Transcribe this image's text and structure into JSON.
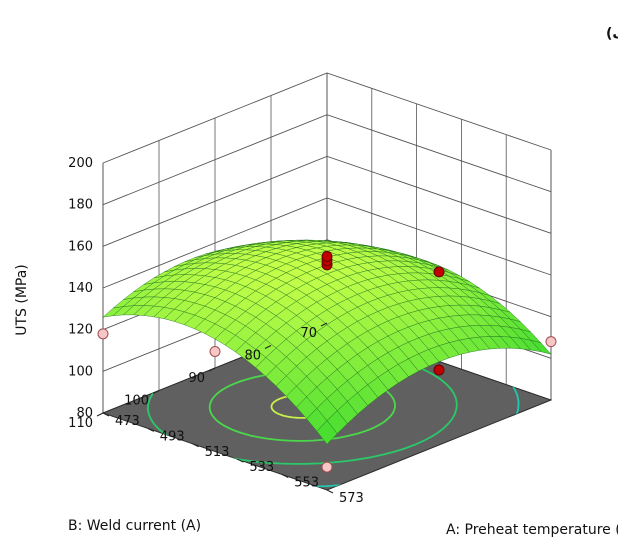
{
  "chart_data": {
    "type": "surface3d",
    "panel_label": "الف)",
    "zlabel": "UTS (MPa)",
    "xlabel": "A: Preheat temperature (K)",
    "ylabel": "B: Weld current (A)",
    "z_ticks": [
      "80",
      "100",
      "120",
      "140",
      "160",
      "180",
      "200"
    ],
    "x_ticks": [
      "473",
      "493",
      "513",
      "533",
      "553",
      "573"
    ],
    "y_ticks": [
      "70",
      "80",
      "90",
      "100",
      "110"
    ],
    "zlim": [
      80,
      200
    ],
    "xlim": [
      473,
      573
    ],
    "ylim": [
      70,
      110
    ],
    "design_points": [
      {
        "a": 473,
        "b": 70,
        "uts": 100,
        "above_surface": false
      },
      {
        "a": 573,
        "b": 70,
        "uts": 108,
        "above_surface": false
      },
      {
        "a": 473,
        "b": 110,
        "uts": 118,
        "above_surface": false
      },
      {
        "a": 573,
        "b": 110,
        "uts": 91,
        "above_surface": false
      },
      {
        "a": 523,
        "b": 70,
        "uts": 123,
        "above_surface": true
      },
      {
        "a": 523,
        "b": 110,
        "uts": 128,
        "above_surface": false
      },
      {
        "a": 473,
        "b": 90,
        "uts": 132,
        "above_surface": false
      },
      {
        "a": 573,
        "b": 90,
        "uts": 116,
        "above_surface": true
      },
      {
        "a": 523,
        "b": 90,
        "uts": 148,
        "above_surface": true
      },
      {
        "a": 523,
        "b": 90,
        "uts": 150,
        "above_surface": true
      },
      {
        "a": 523,
        "b": 90,
        "uts": 152,
        "above_surface": true
      }
    ],
    "colors": {
      "surface_low": "#2bd62b",
      "surface_high": "#c8ff4a",
      "mesh": "#1d6e1d",
      "floor": "#606060",
      "point_above": "#c00000",
      "point_below": "#f7c6c6",
      "grid": "#555555"
    }
  }
}
